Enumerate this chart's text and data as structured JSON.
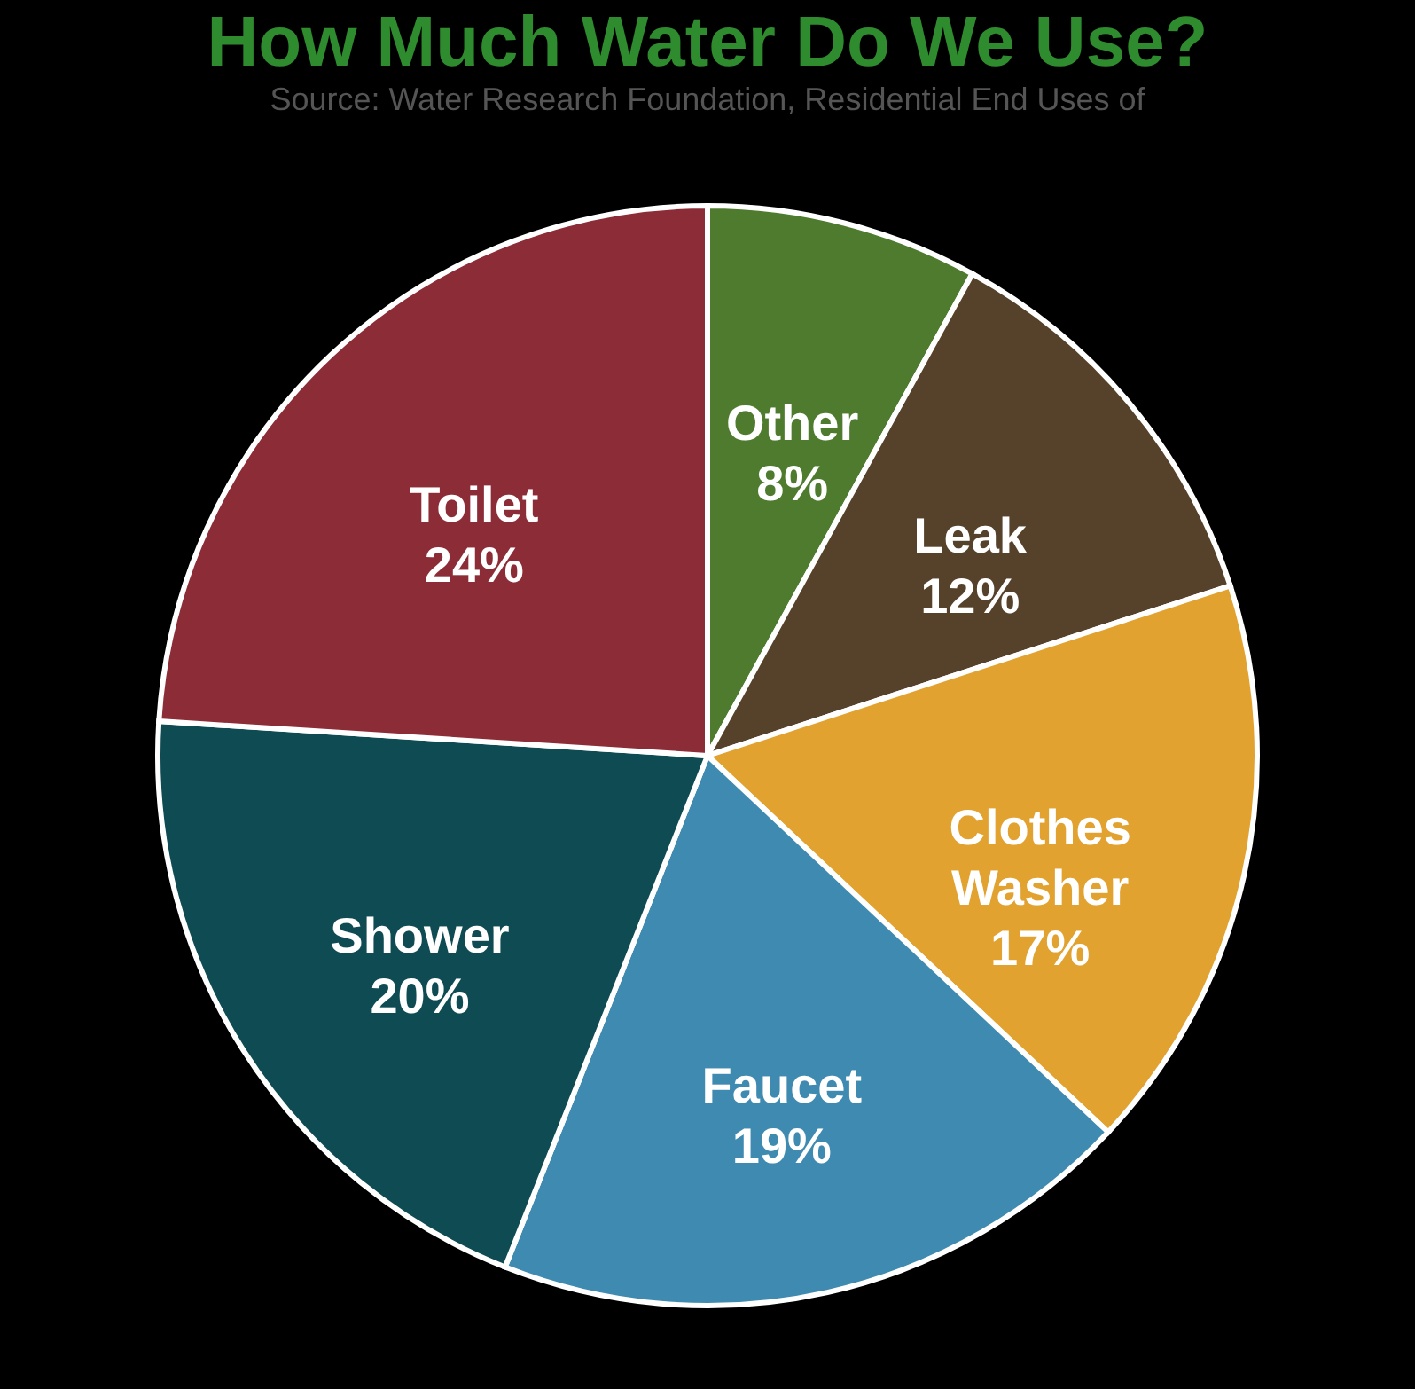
{
  "chart_data": {
    "type": "pie",
    "title": "How Much Water Do We Use?",
    "categories": [
      "Other",
      "Leak",
      "Clothes Washer",
      "Faucet",
      "Shower",
      "Toilet"
    ],
    "values": [
      8,
      12,
      17,
      19,
      20,
      24
    ],
    "value_labels": [
      "8%",
      "12%",
      "17%",
      "19%",
      "20%",
      "24%"
    ],
    "colors": [
      "#4f7b2f",
      "#56412a",
      "#e2a230",
      "#3f8ab0",
      "#0f4b53",
      "#8c2c37"
    ],
    "annotations": [
      "Source: Water Research Foundation, Residential End Uses of"
    ],
    "legend": false
  }
}
